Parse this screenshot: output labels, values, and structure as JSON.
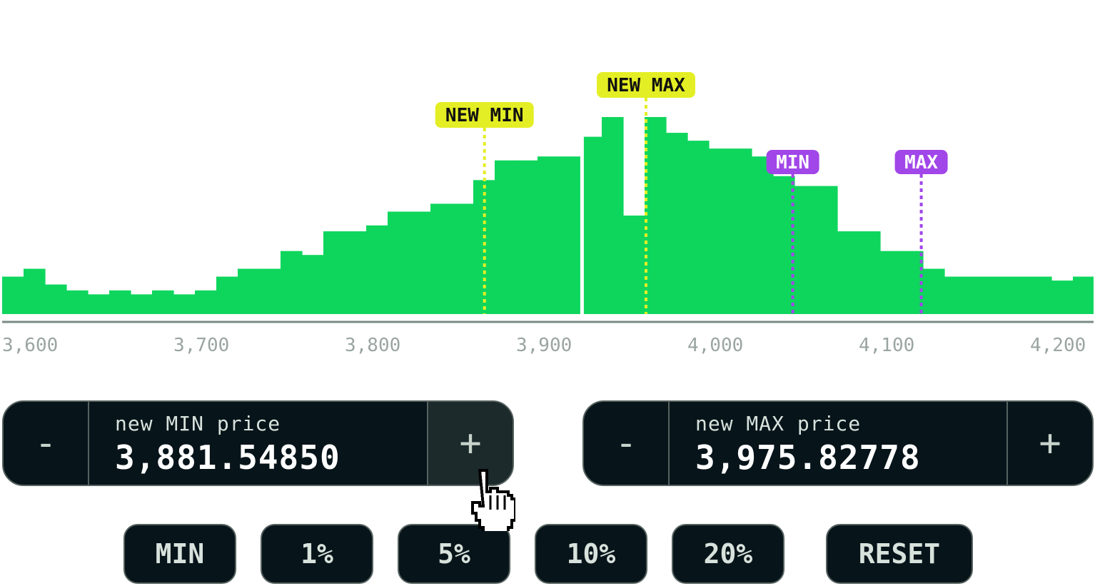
{
  "chart_data": {
    "type": "bar",
    "x_ticks": [
      "3,600",
      "3,700",
      "3,800",
      "3,900",
      "4,000",
      "4,100",
      "4,200"
    ],
    "xlim": [
      3600,
      4237
    ],
    "bin_width": 12.5,
    "values": [
      0.19,
      0.23,
      0.15,
      0.12,
      0.1,
      0.12,
      0.1,
      0.12,
      0.1,
      0.12,
      0.19,
      0.23,
      0.23,
      0.32,
      0.3,
      0.42,
      0.42,
      0.45,
      0.52,
      0.52,
      0.56,
      0.56,
      0.68,
      0.78,
      0.78,
      0.8,
      0.8,
      0.9,
      1.0,
      0.5,
      1.0,
      0.92,
      0.88,
      0.84,
      0.84,
      0.8,
      0.7,
      0.65,
      0.65,
      0.42,
      0.42,
      0.32,
      0.32,
      0.23,
      0.19,
      0.19,
      0.19,
      0.19,
      0.19,
      0.17,
      0.19,
      0.12,
      0.12
    ],
    "current_price": 3938.5,
    "markers": [
      {
        "label": "NEW MIN",
        "value": 3881.5485,
        "color": "#e4ee24",
        "style": "new"
      },
      {
        "label": "NEW MAX",
        "value": 3975.82778,
        "color": "#e4ee24",
        "style": "new"
      },
      {
        "label": "MIN",
        "value": 4061.5,
        "color": "#a146e8",
        "style": "old"
      },
      {
        "label": "MAX",
        "value": 4136.5,
        "color": "#a146e8",
        "style": "old"
      }
    ],
    "colors": {
      "bars": "#0ed65d",
      "axis": "#7a8a85",
      "tick": "#9aa5a0"
    }
  },
  "min_stepper": {
    "minus_label": "-",
    "plus_label": "+",
    "label": "new MIN price",
    "value": "3,881.54850"
  },
  "max_stepper": {
    "minus_label": "-",
    "plus_label": "+",
    "label": "new MAX price",
    "value": "3,975.82778"
  },
  "presets": [
    "MIN",
    "1%",
    "5%",
    "10%",
    "20%",
    "RESET"
  ]
}
